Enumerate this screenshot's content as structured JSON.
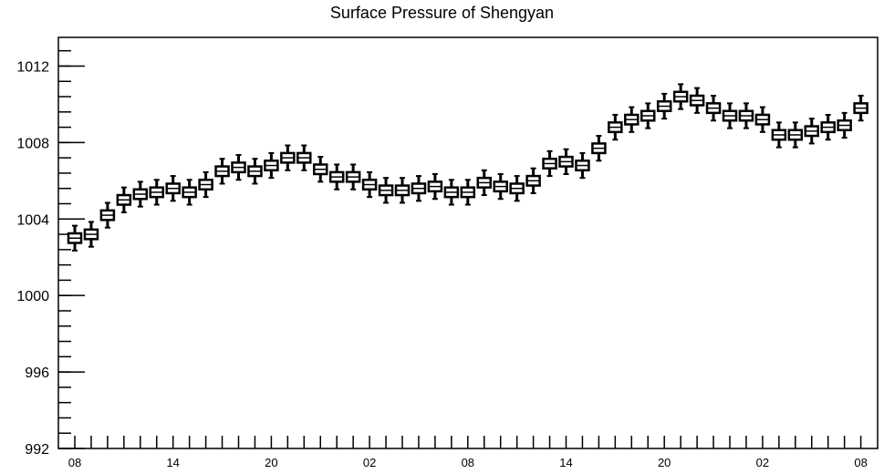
{
  "chart_data": {
    "type": "boxplot",
    "title": "Surface Pressure of Shengyan",
    "xlabel": "",
    "ylabel": "",
    "ylim": [
      992,
      1013.5
    ],
    "y_major_ticks": [
      992,
      996,
      1000,
      1004,
      1008,
      1012
    ],
    "y_minor_step": 0.8,
    "x_tick_labels": [
      "08",
      "14",
      "20",
      "02",
      "08",
      "14",
      "20",
      "02",
      "08"
    ],
    "x_tick_label_positions": [
      0,
      6,
      12,
      18,
      24,
      30,
      36,
      42,
      48
    ],
    "x_count": 49,
    "grid": false,
    "medians": [
      1003.0,
      1003.2,
      1004.2,
      1005.0,
      1005.3,
      1005.4,
      1005.6,
      1005.4,
      1005.8,
      1006.5,
      1006.7,
      1006.5,
      1006.8,
      1007.2,
      1007.2,
      1006.6,
      1006.2,
      1006.2,
      1005.8,
      1005.5,
      1005.5,
      1005.6,
      1005.7,
      1005.4,
      1005.4,
      1005.9,
      1005.7,
      1005.6,
      1006.0,
      1006.9,
      1007.0,
      1006.8,
      1007.7,
      1008.8,
      1009.2,
      1009.4,
      1009.9,
      1010.4,
      1010.2,
      1009.8,
      1009.4,
      1009.4,
      1009.2,
      1008.4,
      1008.4,
      1008.6,
      1008.8,
      1008.9,
      1009.8
    ],
    "box_half_height": 0.25,
    "whisker_half_length": 0.65
  }
}
